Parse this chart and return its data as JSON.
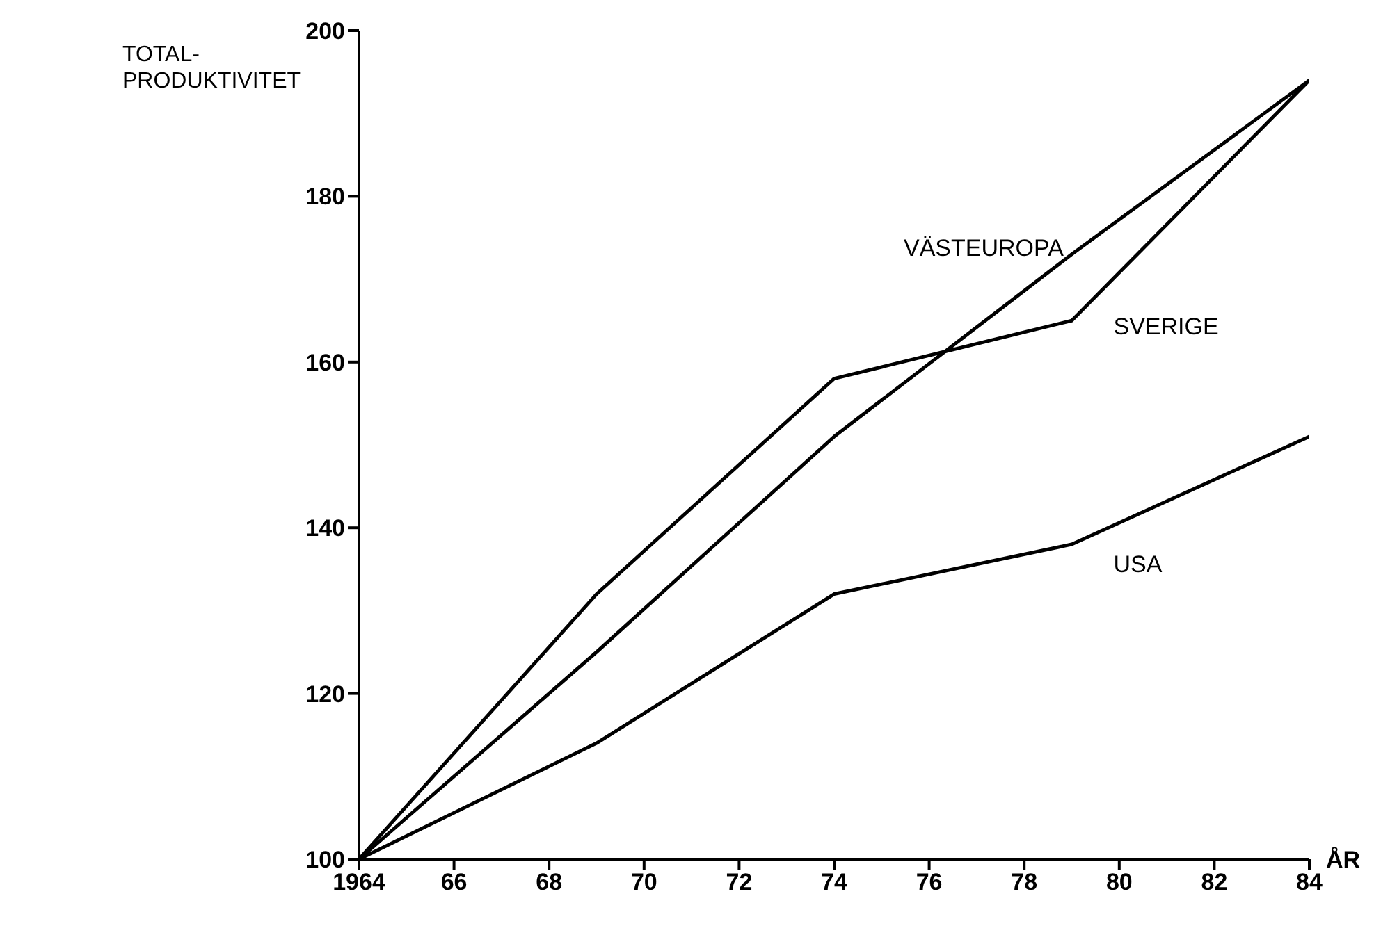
{
  "chart_data": {
    "type": "line",
    "xlabel": "ÅR",
    "ylabel": "TOTAL-\nPRODUKTIVITET",
    "x": [
      1964,
      1969,
      1974,
      1979,
      1984
    ],
    "series": [
      {
        "name": "VÄSTEUROPA",
        "color": "#000000",
        "values": [
          100,
          125,
          151,
          173,
          194
        ]
      },
      {
        "name": "SVERIGE",
        "color": "#000000",
        "values": [
          100,
          132,
          158,
          165,
          194
        ]
      },
      {
        "name": "USA",
        "color": "#000000",
        "values": [
          100,
          114,
          132,
          138,
          151
        ]
      }
    ],
    "xlim": [
      1964,
      1984
    ],
    "xticks": [
      {
        "value": 1964,
        "label": "1964"
      },
      {
        "value": 1966,
        "label": "66"
      },
      {
        "value": 1968,
        "label": "68"
      },
      {
        "value": 1970,
        "label": "70"
      },
      {
        "value": 1972,
        "label": "72"
      },
      {
        "value": 1974,
        "label": "74"
      },
      {
        "value": 1976,
        "label": "76"
      },
      {
        "value": 1978,
        "label": "78"
      },
      {
        "value": 1980,
        "label": "80"
      },
      {
        "value": 1982,
        "label": "82"
      },
      {
        "value": 1984,
        "label": "84"
      }
    ],
    "ylim": [
      100,
      200
    ],
    "yticks": [
      100,
      120,
      140,
      160,
      180,
      200
    ],
    "grid": false,
    "legend": false,
    "marker": "none",
    "line_style": "solid"
  }
}
